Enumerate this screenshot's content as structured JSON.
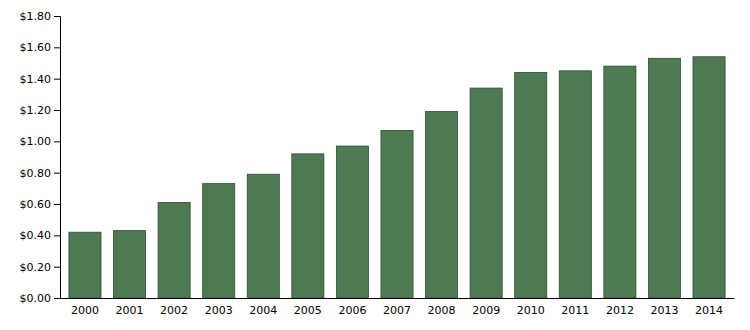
{
  "chart_data": {
    "type": "bar",
    "categories": [
      "2000",
      "2001",
      "2002",
      "2003",
      "2004",
      "2005",
      "2006",
      "2007",
      "2008",
      "2009",
      "2010",
      "2011",
      "2012",
      "2013",
      "2014"
    ],
    "values": [
      0.42,
      0.43,
      0.61,
      0.73,
      0.79,
      0.92,
      0.97,
      1.07,
      1.19,
      1.34,
      1.44,
      1.45,
      1.48,
      1.53,
      1.54
    ],
    "color": "#4d7a52",
    "ylim": [
      0.0,
      1.8
    ],
    "yticks": [
      {
        "value": 0.0,
        "label": "$0.00"
      },
      {
        "value": 0.2,
        "label": "$0.20"
      },
      {
        "value": 0.4,
        "label": "$0.40"
      },
      {
        "value": 0.6,
        "label": "$0.60"
      },
      {
        "value": 0.8,
        "label": "$0.80"
      },
      {
        "value": 1.0,
        "label": "$1.00"
      },
      {
        "value": 1.2,
        "label": "$1.20"
      },
      {
        "value": 1.4,
        "label": "$1.40"
      },
      {
        "value": 1.6,
        "label": "$1.60"
      },
      {
        "value": 1.8,
        "label": "$1.80"
      }
    ],
    "grid": false
  }
}
